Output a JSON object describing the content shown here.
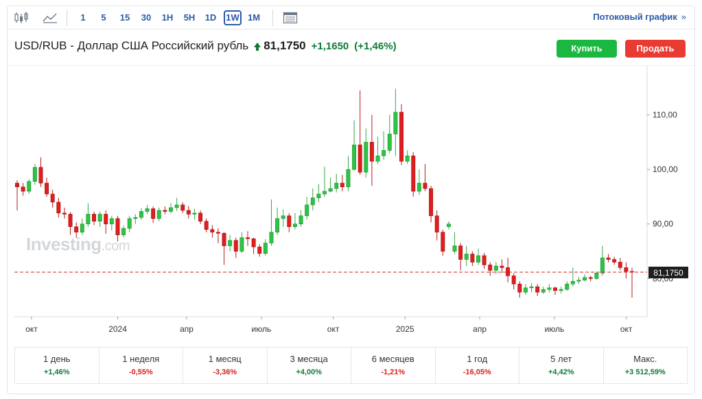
{
  "toolbar": {
    "intervals": [
      "1",
      "5",
      "15",
      "30",
      "1H",
      "5H",
      "1D",
      "1W",
      "1M"
    ],
    "active_interval": "1W",
    "stream_link": "Потоковый график",
    "stream_arrows": "»"
  },
  "header": {
    "pair": "USD/RUB - Доллар США Российский рубль",
    "price": "81,1750",
    "change": "+1,1650",
    "change_pct": "(+1,46%)",
    "buy_label": "Купить",
    "sell_label": "Продать"
  },
  "watermark": {
    "brand": "Investing",
    "suffix": ".com"
  },
  "periods": [
    {
      "label": "1 день",
      "value": "+1,46%",
      "sign": "pos"
    },
    {
      "label": "1 неделя",
      "value": "-0,55%",
      "sign": "neg"
    },
    {
      "label": "1 месяц",
      "value": "-3,36%",
      "sign": "neg"
    },
    {
      "label": "3 месяца",
      "value": "+4,00%",
      "sign": "pos"
    },
    {
      "label": "6 месяцев",
      "value": "-1,21%",
      "sign": "neg"
    },
    {
      "label": "1 год",
      "value": "-16,05%",
      "sign": "neg"
    },
    {
      "label": "5 лет",
      "value": "+4,42%",
      "sign": "pos"
    },
    {
      "label": "Макс.",
      "value": "+3 512,59%",
      "sign": "pos"
    }
  ],
  "colors": {
    "up": "#2dc443",
    "down": "#e11d1d",
    "accent": "#2a5aa6",
    "price_line": "#d91e18",
    "price_label_bg": "#1e1e1e"
  },
  "chart_data": {
    "type": "candlestick",
    "interval": "1W",
    "ylim": [
      73,
      119
    ],
    "y_ticks": [
      "80,00",
      "90,00",
      "100,00",
      "110,00"
    ],
    "y_tick_values": [
      80,
      90,
      100,
      110
    ],
    "x_ticks": [
      "окт",
      "2024",
      "апр",
      "июль",
      "окт",
      "2025",
      "апр",
      "июль",
      "окт"
    ],
    "last_price": 81.175,
    "last_price_label": "81,1750",
    "candles": [
      [
        97.5,
        96.8,
        98.0,
        92.5
      ],
      [
        96.8,
        96.0,
        97.5,
        95.2
      ],
      [
        96.0,
        97.8,
        98.2,
        95.5
      ],
      [
        97.8,
        100.4,
        101.0,
        97.2
      ],
      [
        100.4,
        97.5,
        102.2,
        96.8
      ],
      [
        97.5,
        95.5,
        98.5,
        95.0
      ],
      [
        95.5,
        94.0,
        96.3,
        93.0
      ],
      [
        94.0,
        92.0,
        94.8,
        91.2
      ],
      [
        92.0,
        91.8,
        93.0,
        91.0
      ],
      [
        91.8,
        89.5,
        92.2,
        88.0
      ],
      [
        89.5,
        88.5,
        90.3,
        87.5
      ],
      [
        88.5,
        90.0,
        91.0,
        88.0
      ],
      [
        90.0,
        91.8,
        93.8,
        89.5
      ],
      [
        91.8,
        90.5,
        92.3,
        89.8
      ],
      [
        90.5,
        91.8,
        92.3,
        89.5
      ],
      [
        91.8,
        90.0,
        92.5,
        88.2
      ],
      [
        90.0,
        91.0,
        91.5,
        88.8
      ],
      [
        91.0,
        88.0,
        91.5,
        86.8
      ],
      [
        88.0,
        89.2,
        89.7,
        87.5
      ],
      [
        89.2,
        91.0,
        91.5,
        88.5
      ],
      [
        91.0,
        91.2,
        91.8,
        90.0
      ],
      [
        91.2,
        92.3,
        92.9,
        90.8
      ],
      [
        92.3,
        92.8,
        93.5,
        91.8
      ],
      [
        92.8,
        91.0,
        93.2,
        90.2
      ],
      [
        91.0,
        92.5,
        93.0,
        90.5
      ],
      [
        92.5,
        92.3,
        93.2,
        91.8
      ],
      [
        92.3,
        93.0,
        93.8,
        91.9
      ],
      [
        93.0,
        93.5,
        94.8,
        92.4
      ],
      [
        93.5,
        92.5,
        94.0,
        92.0
      ],
      [
        92.5,
        91.8,
        93.3,
        91.0
      ],
      [
        91.8,
        92.0,
        92.8,
        90.8
      ],
      [
        92.0,
        90.5,
        92.5,
        90.0
      ],
      [
        90.5,
        89.0,
        91.0,
        88.5
      ],
      [
        89.0,
        88.5,
        89.8,
        87.5
      ],
      [
        88.5,
        88.3,
        89.2,
        86.5
      ],
      [
        88.3,
        86.0,
        88.5,
        82.5
      ],
      [
        86.0,
        87.0,
        88.0,
        85.0
      ],
      [
        87.0,
        85.0,
        87.5,
        83.8
      ],
      [
        85.0,
        87.5,
        88.5,
        84.7
      ],
      [
        87.5,
        87.3,
        88.7,
        86.0
      ],
      [
        87.3,
        85.8,
        87.5,
        84.5
      ],
      [
        85.8,
        84.6,
        86.3,
        84.0
      ],
      [
        84.6,
        86.5,
        87.2,
        84.2
      ],
      [
        86.5,
        88.5,
        94.5,
        86.0
      ],
      [
        88.5,
        91.0,
        93.0,
        88.0
      ],
      [
        91.0,
        91.5,
        92.7,
        89.5
      ],
      [
        91.5,
        89.5,
        92.0,
        88.5
      ],
      [
        89.5,
        90.0,
        92.0,
        89.0
      ],
      [
        90.0,
        91.5,
        92.5,
        89.5
      ],
      [
        91.5,
        93.5,
        95.0,
        90.8
      ],
      [
        93.5,
        94.8,
        96.5,
        92.5
      ],
      [
        94.8,
        95.5,
        97.3,
        94.0
      ],
      [
        95.5,
        96.0,
        100.5,
        95.0
      ],
      [
        96.0,
        96.5,
        98.5,
        95.8
      ],
      [
        96.5,
        97.5,
        99.2,
        95.8
      ],
      [
        97.5,
        96.8,
        99.0,
        96.0
      ],
      [
        96.8,
        100.0,
        102.5,
        96.0
      ],
      [
        100.0,
        104.5,
        109.0,
        99.8
      ],
      [
        104.5,
        99.5,
        114.5,
        99.0
      ],
      [
        99.5,
        105.0,
        107.5,
        98.5
      ],
      [
        105.0,
        101.5,
        110.0,
        97.0
      ],
      [
        101.5,
        102.5,
        106.0,
        101.0
      ],
      [
        102.5,
        103.5,
        107.0,
        101.8
      ],
      [
        103.5,
        106.5,
        110.0,
        103.0
      ],
      [
        106.5,
        110.5,
        114.8,
        102.5
      ],
      [
        110.5,
        101.5,
        112.0,
        100.8
      ],
      [
        101.5,
        102.5,
        103.5,
        101.0
      ],
      [
        102.5,
        96.0,
        103.2,
        95.0
      ],
      [
        96.0,
        97.5,
        100.0,
        95.3
      ],
      [
        97.5,
        96.5,
        101.0,
        96.0
      ],
      [
        96.5,
        91.5,
        97.0,
        90.3
      ],
      [
        91.5,
        88.5,
        92.5,
        87.0
      ],
      [
        88.5,
        85.0,
        89.0,
        84.2
      ],
      [
        89.5,
        90.0,
        90.5,
        89.0
      ],
      [
        85.0,
        86.0,
        88.5,
        84.5
      ],
      [
        86.0,
        83.5,
        86.5,
        81.5
      ],
      [
        83.5,
        84.5,
        86.0,
        82.3
      ],
      [
        84.5,
        83.0,
        85.0,
        82.3
      ],
      [
        83.0,
        84.2,
        85.5,
        82.5
      ],
      [
        84.2,
        82.5,
        84.7,
        81.8
      ],
      [
        82.5,
        81.5,
        83.0,
        80.5
      ],
      [
        81.5,
        82.3,
        83.0,
        80.8
      ],
      [
        82.3,
        82.0,
        83.5,
        81.0
      ],
      [
        82.0,
        80.5,
        83.8,
        79.3
      ],
      [
        80.5,
        79.0,
        81.0,
        78.0
      ],
      [
        79.0,
        77.5,
        79.5,
        76.5
      ],
      [
        77.5,
        78.3,
        79.0,
        77.0
      ],
      [
        78.3,
        78.5,
        79.2,
        77.5
      ],
      [
        78.5,
        77.5,
        79.0,
        76.8
      ],
      [
        77.5,
        78.0,
        78.5,
        77.2
      ],
      [
        78.0,
        78.3,
        79.0,
        77.5
      ],
      [
        78.3,
        77.8,
        78.5,
        77.0
      ],
      [
        77.8,
        78.0,
        78.5,
        77.3
      ],
      [
        78.0,
        79.0,
        79.5,
        77.8
      ],
      [
        79.0,
        79.5,
        82.0,
        78.5
      ],
      [
        79.5,
        79.7,
        80.3,
        79.0
      ],
      [
        79.7,
        80.2,
        80.8,
        79.5
      ],
      [
        80.2,
        80.0,
        80.5,
        79.5
      ],
      [
        80.0,
        81.0,
        81.2,
        79.8
      ],
      [
        81.0,
        83.8,
        86.0,
        80.5
      ],
      [
        83.8,
        83.5,
        84.5,
        83.0
      ],
      [
        83.5,
        83.0,
        84.0,
        82.5
      ],
      [
        83.0,
        82.0,
        83.8,
        81.5
      ],
      [
        82.0,
        81.3,
        83.0,
        80.0
      ],
      [
        81.3,
        81.2,
        82.0,
        76.5
      ]
    ]
  }
}
